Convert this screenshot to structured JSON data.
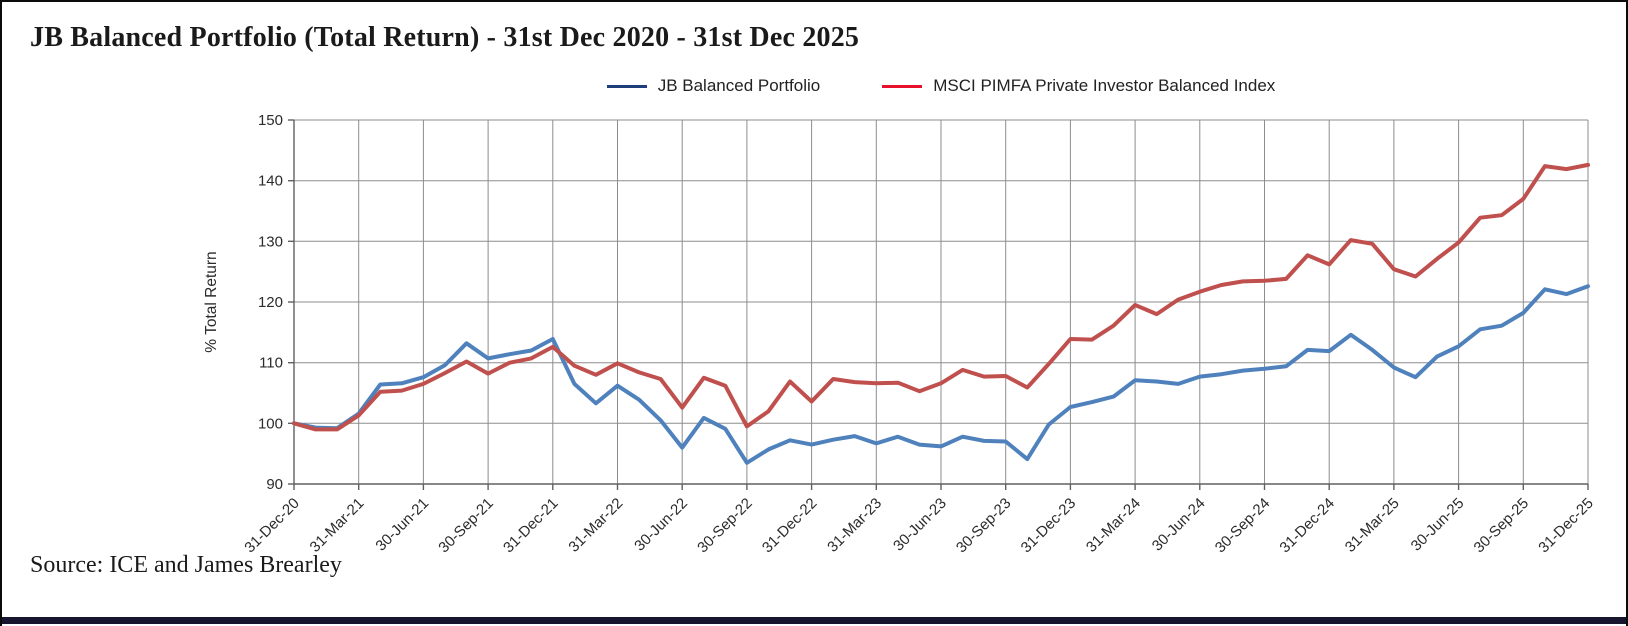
{
  "title": "JB Balanced Portfolio (Total Return) - 31st Dec 2020 - 31st Dec 2025",
  "source": "Source: ICE and James Brearley",
  "legend": [
    {
      "label": "JB Balanced Portfolio",
      "swatch_color": "#1F3D7A"
    },
    {
      "label": "MSCI PIMFA Private Investor Balanced Index",
      "swatch_color": "#E8112D"
    }
  ],
  "chart_data": {
    "type": "line",
    "title": "JB Balanced Portfolio (Total Return) - 31st Dec 2020 - 31st Dec 2025",
    "xlabel": "",
    "ylabel": "% Total Return",
    "ylim": [
      90,
      150
    ],
    "y_ticks": [
      90,
      100,
      110,
      120,
      130,
      140,
      150
    ],
    "grid": true,
    "legend_position": "top",
    "x_tick_labels": [
      "31-Dec-20",
      "31-Mar-21",
      "30-Jun-21",
      "30-Sep-21",
      "31-Dec-21",
      "31-Mar-22",
      "30-Jun-22",
      "30-Sep-22",
      "31-Dec-22",
      "31-Mar-23",
      "30-Jun-23",
      "30-Sep-23",
      "31-Dec-23",
      "31-Mar-24",
      "30-Jun-24",
      "30-Sep-24",
      "31-Dec-24",
      "31-Mar-25",
      "30-Jun-25",
      "30-Sep-25",
      "31-Dec-25"
    ],
    "x": [
      "Dec-20",
      "Jan-21",
      "Feb-21",
      "Mar-21",
      "Apr-21",
      "May-21",
      "Jun-21",
      "Jul-21",
      "Aug-21",
      "Sep-21",
      "Oct-21",
      "Nov-21",
      "Dec-21",
      "Jan-22",
      "Feb-22",
      "Mar-22",
      "Apr-22",
      "May-22",
      "Jun-22",
      "Jul-22",
      "Aug-22",
      "Sep-22",
      "Oct-22",
      "Nov-22",
      "Dec-22",
      "Jan-23",
      "Feb-23",
      "Mar-23",
      "Apr-23",
      "May-23",
      "Jun-23",
      "Jul-23",
      "Aug-23",
      "Sep-23",
      "Oct-23",
      "Nov-23",
      "Dec-23",
      "Jan-24",
      "Feb-24",
      "Mar-24",
      "Apr-24",
      "May-24",
      "Jun-24",
      "Jul-24",
      "Aug-24",
      "Sep-24",
      "Oct-24",
      "Nov-24",
      "Dec-24",
      "Jan-25",
      "Feb-25",
      "Mar-25",
      "Apr-25",
      "May-25",
      "Jun-25",
      "Jul-25",
      "Aug-25",
      "Sep-25",
      "Oct-25",
      "Nov-25",
      "Dec-25"
    ],
    "series": [
      {
        "name": "JB Balanced Portfolio",
        "color": "#4F81BD",
        "values": [
          100.0,
          99.3,
          99.2,
          101.6,
          106.4,
          106.6,
          107.6,
          109.6,
          113.2,
          110.7,
          111.4,
          112.0,
          113.9,
          106.5,
          103.3,
          106.2,
          103.9,
          100.5,
          96.0,
          100.9,
          99.1,
          93.5,
          95.7,
          97.2,
          96.5,
          97.3,
          97.9,
          96.7,
          97.8,
          96.5,
          96.2,
          97.8,
          97.1,
          97.0,
          94.1,
          99.8,
          102.7,
          103.5,
          104.4,
          107.1,
          106.9,
          106.5,
          107.7,
          108.1,
          108.7,
          109.0,
          109.4,
          112.1,
          111.9,
          114.6,
          112.1,
          109.2,
          107.6,
          111.0,
          112.7,
          115.5,
          116.1,
          118.2,
          122.1,
          121.3,
          122.6
        ]
      },
      {
        "name": "MSCI PIMFA Private Investor Balanced Index",
        "color": "#C0504D",
        "values": [
          100.0,
          99.0,
          99.0,
          101.3,
          105.2,
          105.4,
          106.5,
          108.3,
          110.2,
          108.2,
          110.0,
          110.7,
          112.6,
          109.5,
          108.0,
          109.9,
          108.4,
          107.3,
          102.6,
          107.5,
          106.2,
          99.5,
          102.0,
          106.9,
          103.6,
          107.3,
          106.8,
          106.6,
          106.7,
          105.3,
          106.6,
          108.8,
          107.7,
          107.8,
          105.9,
          109.8,
          113.9,
          113.8,
          116.1,
          119.5,
          118.0,
          120.4,
          121.7,
          122.8,
          123.4,
          123.5,
          123.8,
          127.7,
          126.2,
          130.2,
          129.6,
          125.4,
          124.2,
          127.1,
          129.8,
          133.9,
          134.3,
          137.0,
          142.4,
          141.9,
          142.6
        ]
      }
    ]
  }
}
